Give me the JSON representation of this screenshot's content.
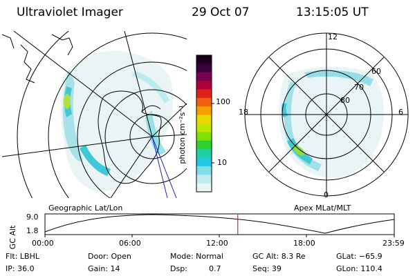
{
  "header": {
    "instrument": "Ultraviolet Imager",
    "date": "29 Oct 07",
    "time": "13:15:05 UT"
  },
  "left_panel": {
    "caption": "Geographic Lat/Lon"
  },
  "right_panel": {
    "caption": "Apex MLat/MLT",
    "mlt_labels": {
      "top": "12",
      "left": "18",
      "right": "6",
      "bottom": "0"
    },
    "mlat_labels": [
      "60",
      "70",
      "80"
    ]
  },
  "colorbar": {
    "label": "photon cm⁻²s⁻¹",
    "ticks": [
      "100",
      "10"
    ],
    "colors": [
      "#1a001a",
      "#3a0040",
      "#7a0050",
      "#b0003a",
      "#e0201a",
      "#f06010",
      "#f5a000",
      "#e8d800",
      "#c0e600",
      "#80e000",
      "#30d030",
      "#20d0a0",
      "#20c8e0",
      "#80dde8",
      "#c0ecef",
      "#e6f4f4"
    ]
  },
  "timeline": {
    "axis_label": "GC Alt",
    "y_ticks": [
      "9.0",
      "1.8"
    ],
    "x_ticks": [
      "00:00",
      "06:00",
      "12:00",
      "18:00",
      "23:59"
    ],
    "current_marker_hour": 13.25
  },
  "info": {
    "filter": "Flt: LBHL",
    "ip": "IP: 36.0",
    "door": "Door: Open",
    "gain": "Gain: 14",
    "mode": "Mode: Normal",
    "dsp_label": "Dsp:",
    "dsp_value": "0.7",
    "gc_alt": "GC Alt: 8.3 Re",
    "seq": "Seq: 39",
    "glat": "GLat: −65.9",
    "glon": "GLon: 110.4"
  },
  "colors": {
    "marker": "#cc0000",
    "coast": "#000000",
    "meridian": "#2020c0"
  }
}
